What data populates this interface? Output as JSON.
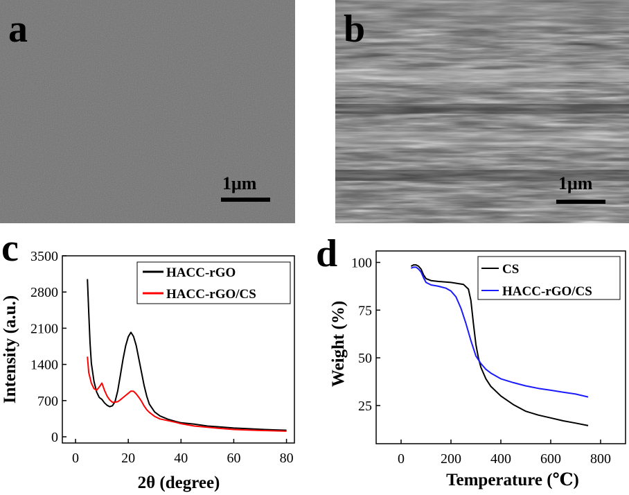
{
  "panels": {
    "a": {
      "label": "a",
      "scale_bar": "1μm"
    },
    "b": {
      "label": "b",
      "scale_bar": "1μm"
    },
    "c": {
      "label": "c"
    },
    "d": {
      "label": "d"
    }
  },
  "colors": {
    "black": "#000000",
    "red": "#ff0000",
    "blue": "#1a1aff"
  },
  "chart_data": [
    {
      "type": "line",
      "xlabel": "2θ (degree)",
      "ylabel": "Intensity (a.u.)",
      "xlim": [
        -5,
        83
      ],
      "ylim": [
        -120,
        3500
      ],
      "xticks": [
        0,
        20,
        40,
        60,
        80
      ],
      "yticks": [
        0,
        700,
        1400,
        2100,
        2800,
        3500
      ],
      "legend_position": "top-right",
      "series": [
        {
          "name": "HACC-rGO",
          "color": "#000000",
          "x": [
            4.5,
            5,
            5.5,
            6,
            7,
            8,
            9,
            10,
            11,
            12,
            13,
            14,
            15,
            16,
            17,
            18,
            19,
            20,
            21,
            22,
            23,
            24,
            25,
            26,
            27,
            28,
            30,
            32,
            35,
            38,
            40,
            45,
            50,
            55,
            60,
            65,
            70,
            75,
            80
          ],
          "y": [
            3050,
            2400,
            1800,
            1400,
            1050,
            850,
            750,
            720,
            660,
            620,
            600,
            620,
            700,
            900,
            1200,
            1500,
            1750,
            1920,
            2000,
            1920,
            1750,
            1500,
            1250,
            1000,
            800,
            650,
            500,
            420,
            350,
            300,
            270,
            240,
            200,
            180,
            160,
            150,
            140,
            135,
            130
          ]
        },
        {
          "name": "HACC-rGO/CS",
          "color": "#ff0000",
          "x": [
            4.5,
            5,
            6,
            7,
            8,
            9,
            10,
            11,
            12,
            13,
            14,
            15,
            16,
            17,
            18,
            19,
            20,
            21,
            22,
            23,
            24,
            25,
            26,
            27,
            28,
            30,
            32,
            35,
            38,
            40,
            45,
            50,
            55,
            60,
            65,
            70,
            75,
            80
          ],
          "y": [
            1550,
            1250,
            1050,
            950,
            920,
            980,
            1050,
            900,
            780,
            700,
            650,
            650,
            660,
            700,
            750,
            800,
            850,
            900,
            900,
            850,
            780,
            700,
            600,
            520,
            460,
            380,
            330,
            300,
            270,
            250,
            210,
            190,
            170,
            150,
            140,
            130,
            120,
            110
          ]
        }
      ]
    },
    {
      "type": "line",
      "xlabel": "Temperature (℃)",
      "ylabel": "Weight (%)",
      "xlim": [
        -100,
        900
      ],
      "ylim": [
        5,
        106
      ],
      "xticks": [
        0,
        200,
        400,
        600,
        800
      ],
      "yticks": [
        25,
        50,
        75,
        100
      ],
      "legend_position": "top-right",
      "series": [
        {
          "name": "CS",
          "color": "#000000",
          "x": [
            40,
            50,
            60,
            70,
            80,
            90,
            100,
            120,
            150,
            200,
            250,
            270,
            280,
            290,
            300,
            310,
            320,
            340,
            360,
            400,
            450,
            500,
            550,
            600,
            650,
            700,
            750
          ],
          "y": [
            98,
            98.7,
            98.7,
            98,
            96.5,
            93.5,
            91.5,
            90.5,
            90,
            89.5,
            88.5,
            86,
            80,
            68,
            57,
            50,
            45,
            39,
            35,
            30,
            25.5,
            22,
            20,
            18.5,
            17,
            15.8,
            14.5
          ]
        },
        {
          "name": "HACC-rGO/CS",
          "color": "#1a1aff",
          "x": [
            40,
            50,
            60,
            70,
            80,
            90,
            100,
            120,
            150,
            180,
            200,
            220,
            240,
            260,
            280,
            300,
            320,
            340,
            360,
            400,
            450,
            500,
            550,
            600,
            650,
            700,
            750
          ],
          "y": [
            97,
            97.5,
            97.5,
            96.5,
            95,
            92,
            89.5,
            88.2,
            87.5,
            86.5,
            85,
            82,
            76,
            68,
            59,
            51,
            47,
            44,
            42,
            39,
            37,
            35.3,
            34,
            33,
            32,
            31,
            29.5
          ]
        }
      ]
    }
  ]
}
